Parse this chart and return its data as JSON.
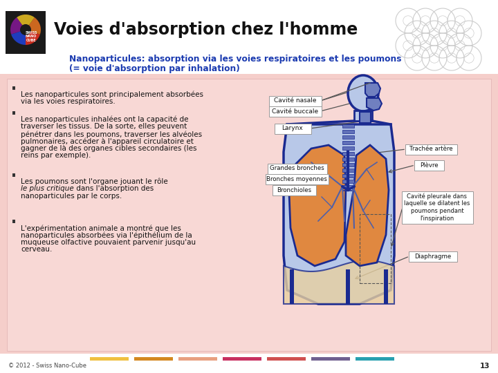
{
  "bg_color": "#ffffff",
  "title": "Voies d'absorption chez l'homme",
  "subtitle_line1": "Nanoparticules: absorption via les voies respiratoires et les poumons",
  "subtitle_line2": "(= voie d'absorption par inhalation)",
  "subtitle_color": "#1a3ab0",
  "content_bg": "#f5ceca",
  "inner_bg": "#f8d8d5",
  "bullet_points_line1": [
    [
      "Les nanoparticules sont principalement absorbées",
      "via les voies respiratoires."
    ],
    [
      "Les nanoparticules inhalées ont la capacité de",
      "traverser les tissus. De la sorte, elles peuvent",
      "pénétrer dans les poumons, traverser les alvéoles",
      "pulmonaires, accéder à l'appareil circulatoire et",
      "gagner de là des organes cibles secondaires (les",
      "reins par exemple)."
    ],
    [
      "Les poumons sont l'organe jouant le rôle",
      "le plus critique dans l'absorption des",
      "nanoparticules par le corps."
    ],
    [
      "L'expérimentation animale a montré que les",
      "nanoparticules absorbées via l'épithélium de la",
      "muqueuse olfactive pouvaient parvenir jusqu'au",
      "cerveau."
    ]
  ],
  "italic_line_index": [
    1
  ],
  "footer_text": "© 2012 - Swiss Nano-Cube",
  "page_number": "13",
  "footer_colors": [
    "#f0c040",
    "#d48820",
    "#e8a080",
    "#c83060",
    "#d05050",
    "#706090",
    "#28a0b0"
  ],
  "body_outline_color": "#1a2a90",
  "body_fill_color": "#b8c8e8",
  "lung_fill_color": "#e08840",
  "lung_edge_color": "#1a2a90",
  "diaphragm_fill": "#e8d0a0",
  "label_bg": "#ffffff",
  "arrow_color": "#555555"
}
